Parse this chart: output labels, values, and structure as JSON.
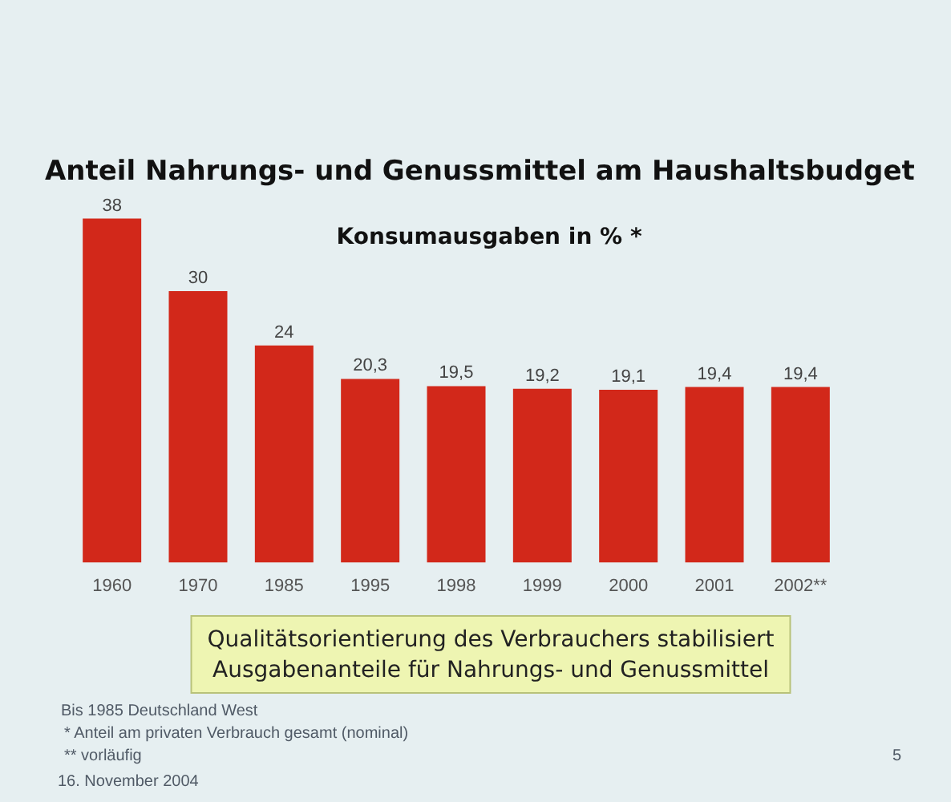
{
  "chart_data": {
    "type": "bar",
    "title": "Anteil Nahrungs- und Genussmittel am Haushaltsbudget",
    "subtitle": "Konsumausgaben in % *",
    "categories": [
      "1960",
      "1970",
      "1985",
      "1995",
      "1998",
      "1999",
      "2000",
      "2001",
      "2002**"
    ],
    "values": [
      38,
      30,
      24,
      20.3,
      19.5,
      19.2,
      19.1,
      19.4,
      19.4
    ],
    "value_labels": [
      "38",
      "30",
      "24",
      "20,3",
      "19,5",
      "19,2",
      "19,1",
      "19,4",
      "19,4"
    ],
    "color": "#d2281a",
    "grid": false,
    "legend": false,
    "annotations": [
      "Qualitätsorientierung des Verbrauchers stabilisiert\nAusgabenanteile für Nahrungs- und Genussmittel",
      "Bis 1985 Deutschland West",
      "* Anteil am privaten Verbrauch gesamt (nominal)",
      "** vorläufig",
      "16. November 2004",
      "5"
    ]
  }
}
